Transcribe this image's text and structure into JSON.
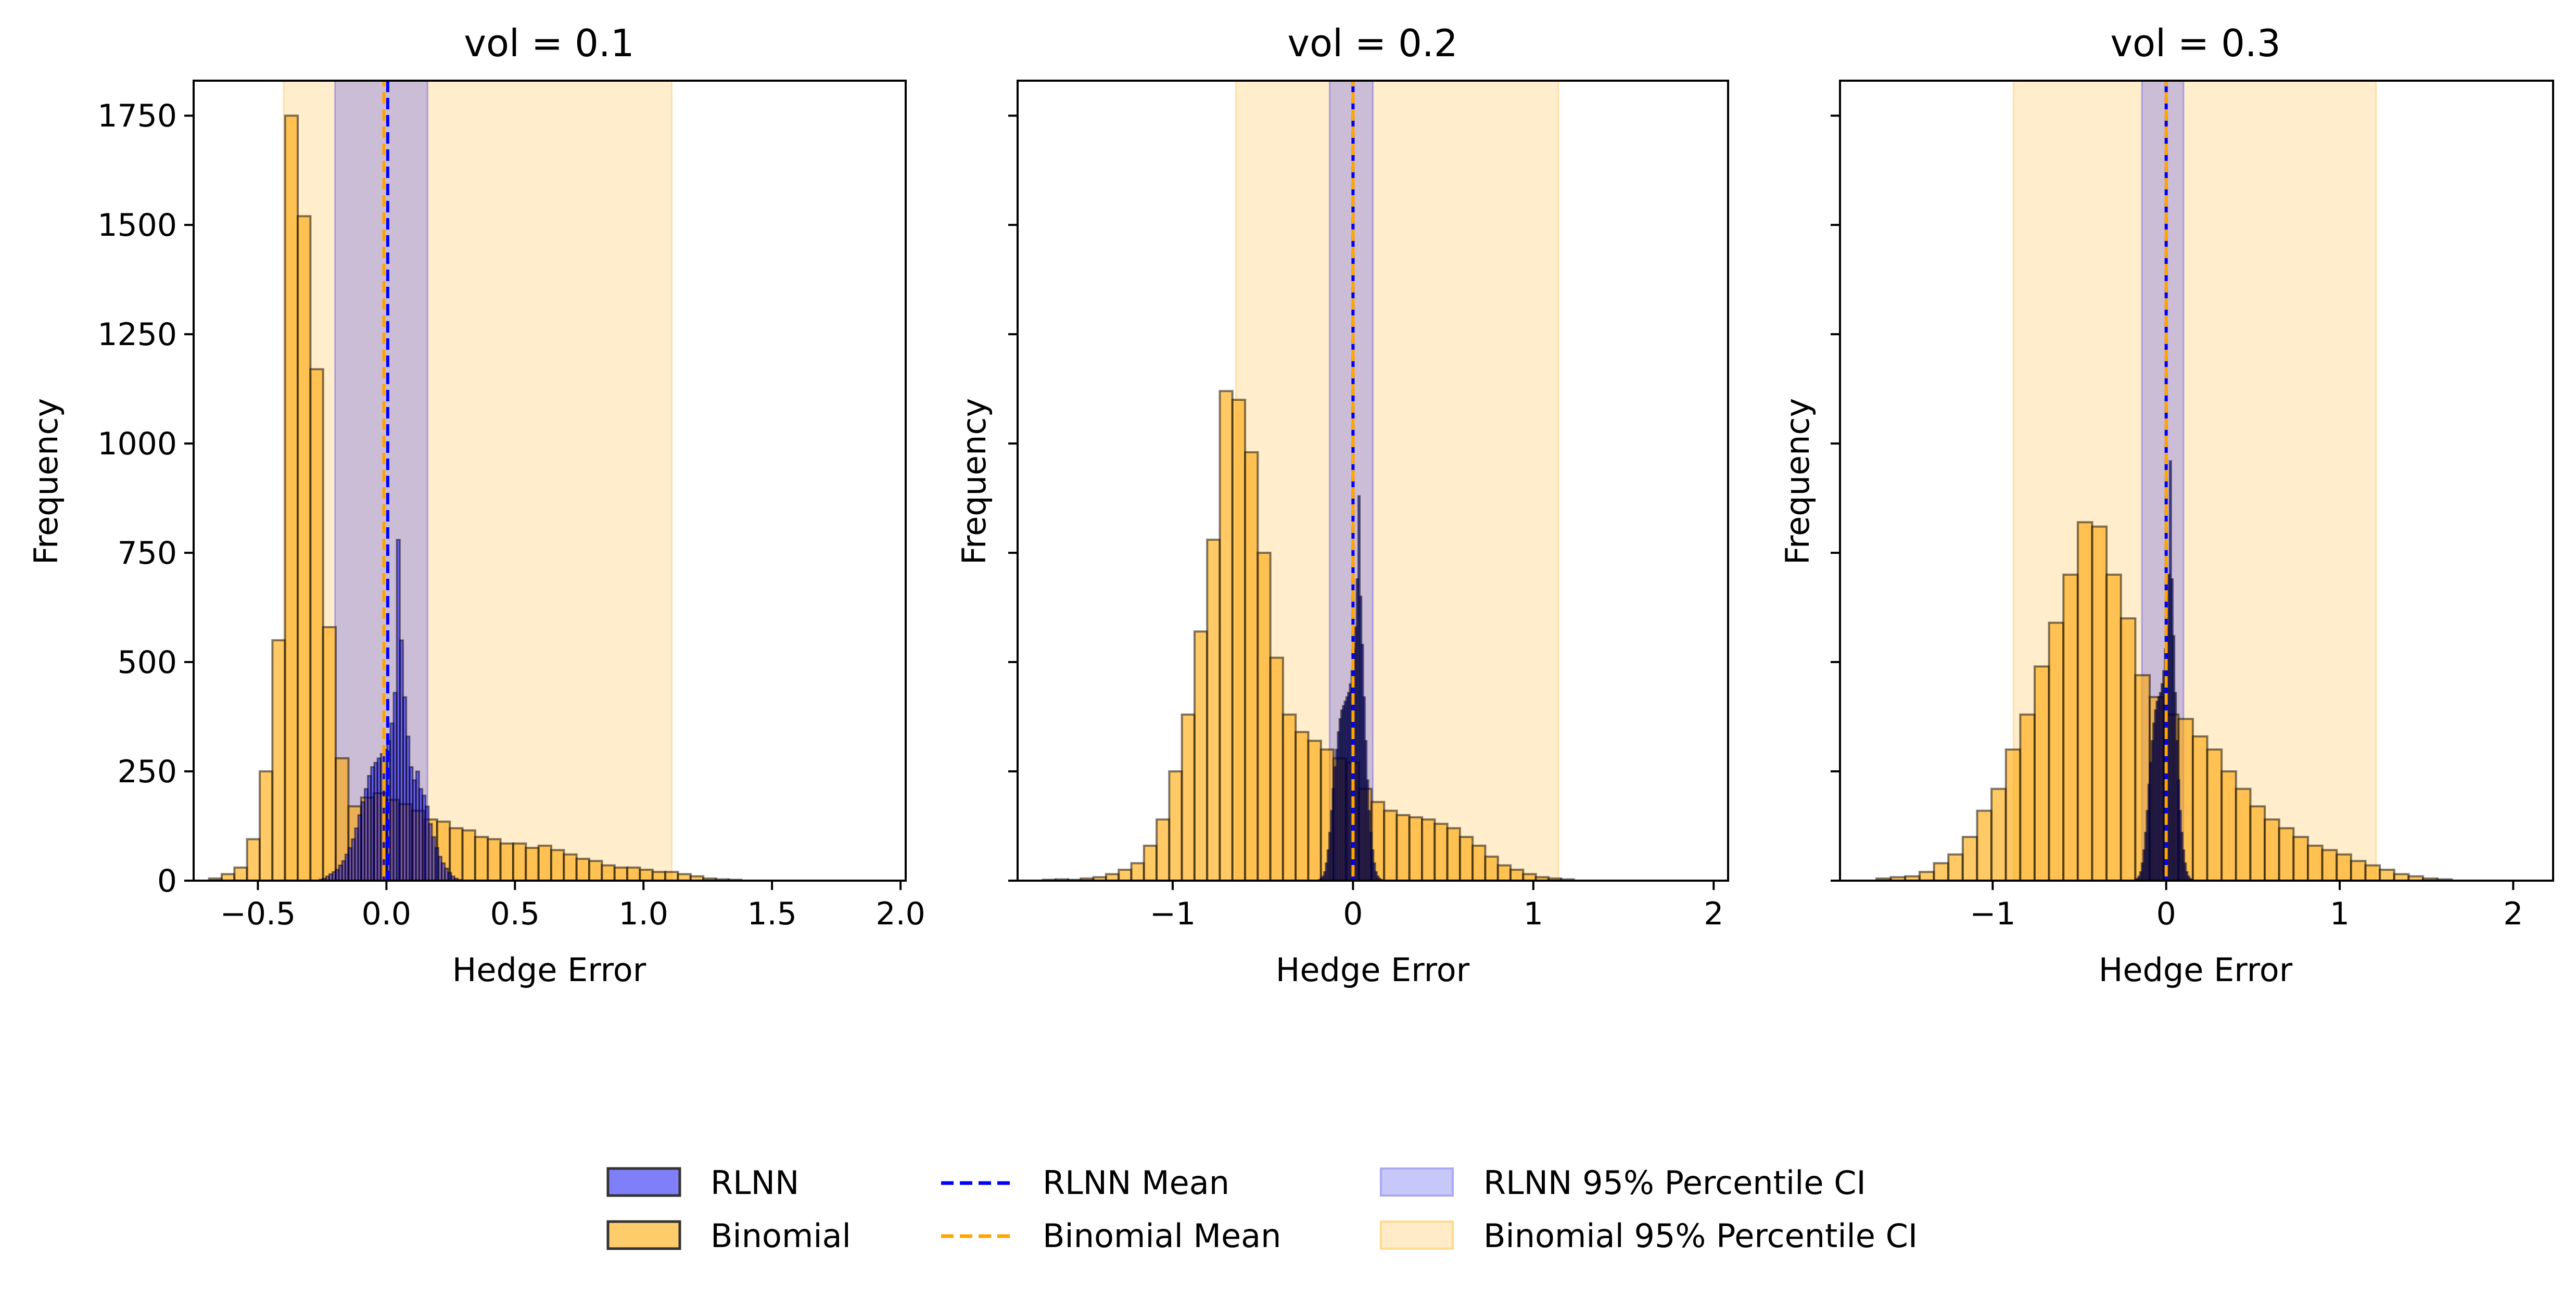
{
  "chart_data": {
    "type": "histogram",
    "legend_position": "bottom-center",
    "legend": [
      {
        "label": "RLNN",
        "kind": "patch",
        "color": "#7f7ff9"
      },
      {
        "label": "Binomial",
        "kind": "patch",
        "color": "#ffcc6c"
      },
      {
        "label": "RLNN Mean",
        "kind": "dashed-line",
        "color": "#0000ff"
      },
      {
        "label": "Binomial Mean",
        "kind": "dashed-line",
        "color": "#ffa500"
      },
      {
        "label": "RLNN 95% Percentile CI",
        "kind": "band",
        "color": "#c7c7f9"
      },
      {
        "label": "Binomial 95% Percentile CI",
        "kind": "band",
        "color": "#ffebc7"
      }
    ],
    "panels": [
      {
        "title": "vol = 0.1",
        "xlabel": "Hedge Error",
        "ylabel": "Frequency",
        "xlim": [
          -0.75,
          2.02
        ],
        "ylim": [
          0,
          1830
        ],
        "xticks": [
          -0.5,
          0.0,
          0.5,
          1.0,
          1.5,
          2.0
        ],
        "xtick_labels": [
          "−0.5",
          "0.0",
          "0.5",
          "1.0",
          "1.5",
          "2.0"
        ],
        "yticks": [
          0,
          250,
          500,
          750,
          1000,
          1250,
          1500,
          1750
        ],
        "ytick_labels": [
          "0",
          "250",
          "500",
          "750",
          "1000",
          "1250",
          "1500",
          "1750"
        ],
        "binomial": {
          "bin_start": -0.69,
          "bin_width": 0.0493,
          "counts": [
            5,
            15,
            30,
            95,
            250,
            550,
            1750,
            1520,
            1170,
            580,
            280,
            170,
            190,
            200,
            185,
            175,
            160,
            140,
            135,
            120,
            115,
            100,
            95,
            85,
            85,
            75,
            80,
            70,
            60,
            50,
            45,
            35,
            30,
            30,
            25,
            20,
            20,
            15,
            10,
            5,
            3,
            2
          ],
          "mean": -0.01,
          "ci": [
            -0.4,
            1.11
          ]
        },
        "rlnn": {
          "bin_start": -0.26,
          "bin_width": 0.0125,
          "counts": [
            3,
            5,
            10,
            15,
            20,
            25,
            35,
            45,
            60,
            75,
            95,
            120,
            150,
            180,
            210,
            240,
            260,
            270,
            280,
            290,
            300,
            320,
            360,
            430,
            780,
            550,
            420,
            330,
            260,
            230,
            250,
            210,
            195,
            170,
            130,
            100,
            75,
            55,
            40,
            28,
            18,
            10,
            5,
            2
          ],
          "mean": 0.005,
          "ci": [
            -0.2,
            0.16
          ]
        }
      },
      {
        "title": "vol = 0.2",
        "xlabel": "Hedge Error",
        "ylabel": "Frequency",
        "xlim": [
          -1.86,
          2.08
        ],
        "ylim": [
          0,
          1830
        ],
        "xticks": [
          -1,
          0,
          1,
          2
        ],
        "xtick_labels": [
          "−1",
          "0",
          "1",
          "2"
        ],
        "yticks": [
          0,
          250,
          500,
          750,
          1000,
          1250,
          1500,
          1750
        ],
        "ytick_labels": [],
        "binomial": {
          "bin_start": -1.72,
          "bin_width": 0.0701,
          "counts": [
            2,
            3,
            2,
            5,
            8,
            15,
            25,
            40,
            80,
            140,
            250,
            380,
            570,
            780,
            1120,
            1100,
            980,
            750,
            510,
            380,
            340,
            320,
            300,
            280,
            270,
            210,
            180,
            160,
            150,
            145,
            140,
            130,
            120,
            100,
            80,
            55,
            35,
            25,
            15,
            8,
            5,
            3
          ],
          "mean": 0.0,
          "ci": [
            -0.65,
            1.14
          ]
        },
        "rlnn": {
          "bin_start": -0.19,
          "bin_width": 0.0095,
          "counts": [
            2,
            5,
            10,
            20,
            40,
            70,
            110,
            160,
            210,
            260,
            300,
            340,
            370,
            390,
            400,
            410,
            420,
            430,
            450,
            480,
            530,
            580,
            690,
            880,
            650,
            540,
            420,
            320,
            230,
            160,
            110,
            70,
            40,
            20,
            10,
            5,
            2
          ],
          "mean": 0.0,
          "ci": [
            -0.13,
            0.11
          ]
        }
      },
      {
        "title": "vol = 0.3",
        "xlabel": "Hedge Error",
        "ylabel": "Frequency",
        "xlim": [
          -1.88,
          2.23
        ],
        "ylim": [
          0,
          1830
        ],
        "xticks": [
          -1,
          0,
          1,
          2
        ],
        "xtick_labels": [
          "−1",
          "0",
          "1",
          "2"
        ],
        "yticks": [
          0,
          250,
          500,
          750,
          1000,
          1250,
          1500,
          1750
        ],
        "ytick_labels": [],
        "binomial": {
          "bin_start": -1.67,
          "bin_width": 0.0829,
          "counts": [
            5,
            8,
            10,
            20,
            40,
            60,
            100,
            160,
            210,
            300,
            380,
            490,
            590,
            700,
            820,
            810,
            700,
            600,
            470,
            420,
            380,
            370,
            330,
            300,
            250,
            210,
            170,
            140,
            120,
            100,
            80,
            70,
            60,
            45,
            35,
            25,
            15,
            10,
            5,
            3
          ],
          "mean": 0.0,
          "ci": [
            -0.88,
            1.21
          ]
        },
        "rlnn": {
          "bin_start": -0.18,
          "bin_width": 0.0095,
          "counts": [
            2,
            5,
            10,
            20,
            40,
            70,
            110,
            160,
            220,
            270,
            320,
            360,
            390,
            410,
            420,
            430,
            450,
            480,
            530,
            580,
            700,
            960,
            690,
            560,
            430,
            320,
            230,
            160,
            110,
            70,
            40,
            20,
            10,
            5,
            2
          ],
          "mean": 0.0,
          "ci": [
            -0.14,
            0.1
          ]
        }
      }
    ]
  }
}
